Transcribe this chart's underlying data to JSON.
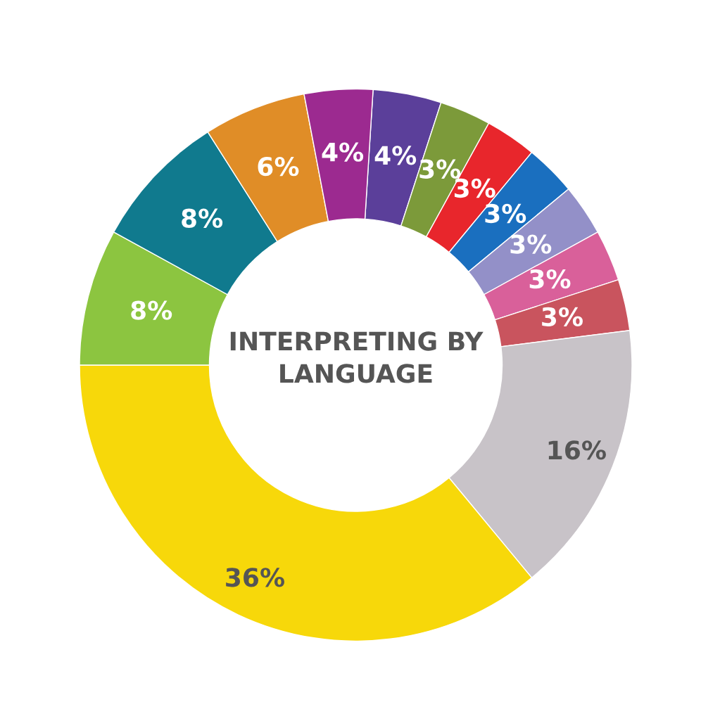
{
  "chart_data": {
    "type": "donut",
    "title": "INTERPRETING BY LANGUAGE",
    "categories": [
      null,
      null,
      null,
      null,
      null,
      null,
      null,
      null,
      null,
      null,
      null,
      null,
      null
    ],
    "values": [
      4,
      3,
      3,
      3,
      3,
      3,
      3,
      16,
      36,
      8,
      8,
      6,
      4
    ],
    "colors": [
      "#5b3f9a",
      "#7c9a3a",
      "#e8262c",
      "#1a6fbf",
      "#9390c8",
      "#d9609a",
      "#c9545e",
      "#c8c3c8",
      "#f7d80a",
      "#8cc540",
      "#107a8e",
      "#e08d27",
      "#9c2a90"
    ],
    "value_labels": [
      "4%",
      "3%",
      "3%",
      "3%",
      "3%",
      "3%",
      "3%",
      "16%",
      "36%",
      "8%",
      "8%",
      "6%",
      "4%"
    ],
    "legend": false
  }
}
